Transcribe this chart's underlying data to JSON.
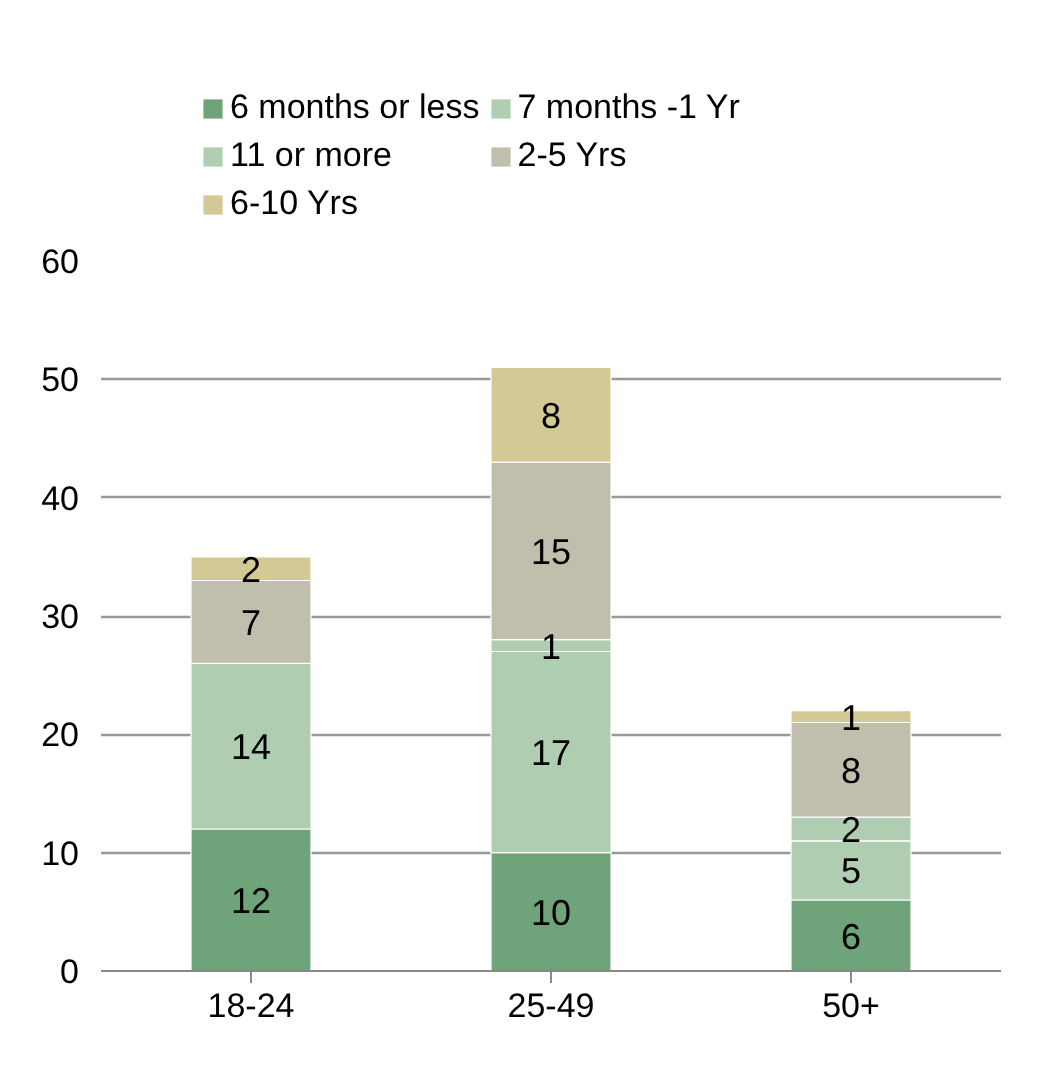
{
  "chart_data": {
    "type": "bar",
    "stacked": true,
    "categories": [
      "18-24",
      "25-49",
      "50+"
    ],
    "series": [
      {
        "name": "6 months or less",
        "color": "#6fa37a",
        "values": [
          12,
          10,
          6
        ]
      },
      {
        "name": "7 months -1 Yr",
        "color": "#afcdb0",
        "values": [
          14,
          17,
          5
        ]
      },
      {
        "name": "11 or more",
        "color": "#afcdb0",
        "values": [
          null,
          1,
          2
        ]
      },
      {
        "name": "2-5 Yrs",
        "color": "#c0bfae",
        "values": [
          7,
          15,
          8
        ]
      },
      {
        "name": "6-10 Yrs",
        "color": "#d3c995",
        "values": [
          2,
          8,
          1
        ]
      }
    ],
    "ylim": [
      0,
      60
    ],
    "yticks": [
      0,
      10,
      20,
      30,
      40,
      50,
      60
    ],
    "grid": "y",
    "legend": "top",
    "data_labels": true
  }
}
